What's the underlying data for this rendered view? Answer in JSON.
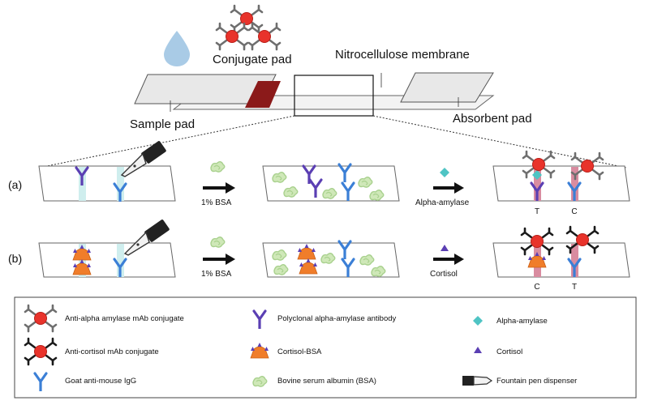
{
  "strip": {
    "conjugate_pad": "Conjugate pad",
    "nitrocellulose": "Nitrocellulose membrane",
    "sample_pad": "Sample pad",
    "absorbent_pad": "Absorbent pad"
  },
  "row_a": {
    "label": "(a)",
    "step1": "1% BSA",
    "step2": "Alpha-amylase",
    "line1": "T",
    "line2": "C"
  },
  "row_b": {
    "label": "(b)",
    "step1": "1% BSA",
    "step2": "Cortisol",
    "line1": "C",
    "line2": "T"
  },
  "legend": {
    "anti_alpha_conjugate": "Anti-alpha amylase mAb conjugate",
    "polyclonal_antibody": "Polyclonal alpha-amylase antibody",
    "alpha_amylase": "Alpha-amylase",
    "anti_cortisol_conjugate": "Anti-cortisol mAb conjugate",
    "cortisol_bsa": "Cortisol-BSA",
    "cortisol": "Cortisol",
    "goat_igg": "Goat anti-mouse IgG",
    "bsa": "Bovine serum albumin (BSA)",
    "pen": "Fountain pen dispenser"
  },
  "colors": {
    "polyclonal": "#5b3fb3",
    "goat_igg": "#3b7fd6",
    "conjugate_core": "#e8332b",
    "conjugate_arms_alpha": "#6e6e6e",
    "conjugate_arms_cortisol": "#1a1a1a",
    "cortisol_bsa": "#f07d2a",
    "bsa": "#a9d18e",
    "alpha_amylase": "#4fc4c4",
    "drop": "#a9cbe6",
    "test_line": "#d98ca0",
    "conjugate_pad": "#8b1a1a"
  }
}
